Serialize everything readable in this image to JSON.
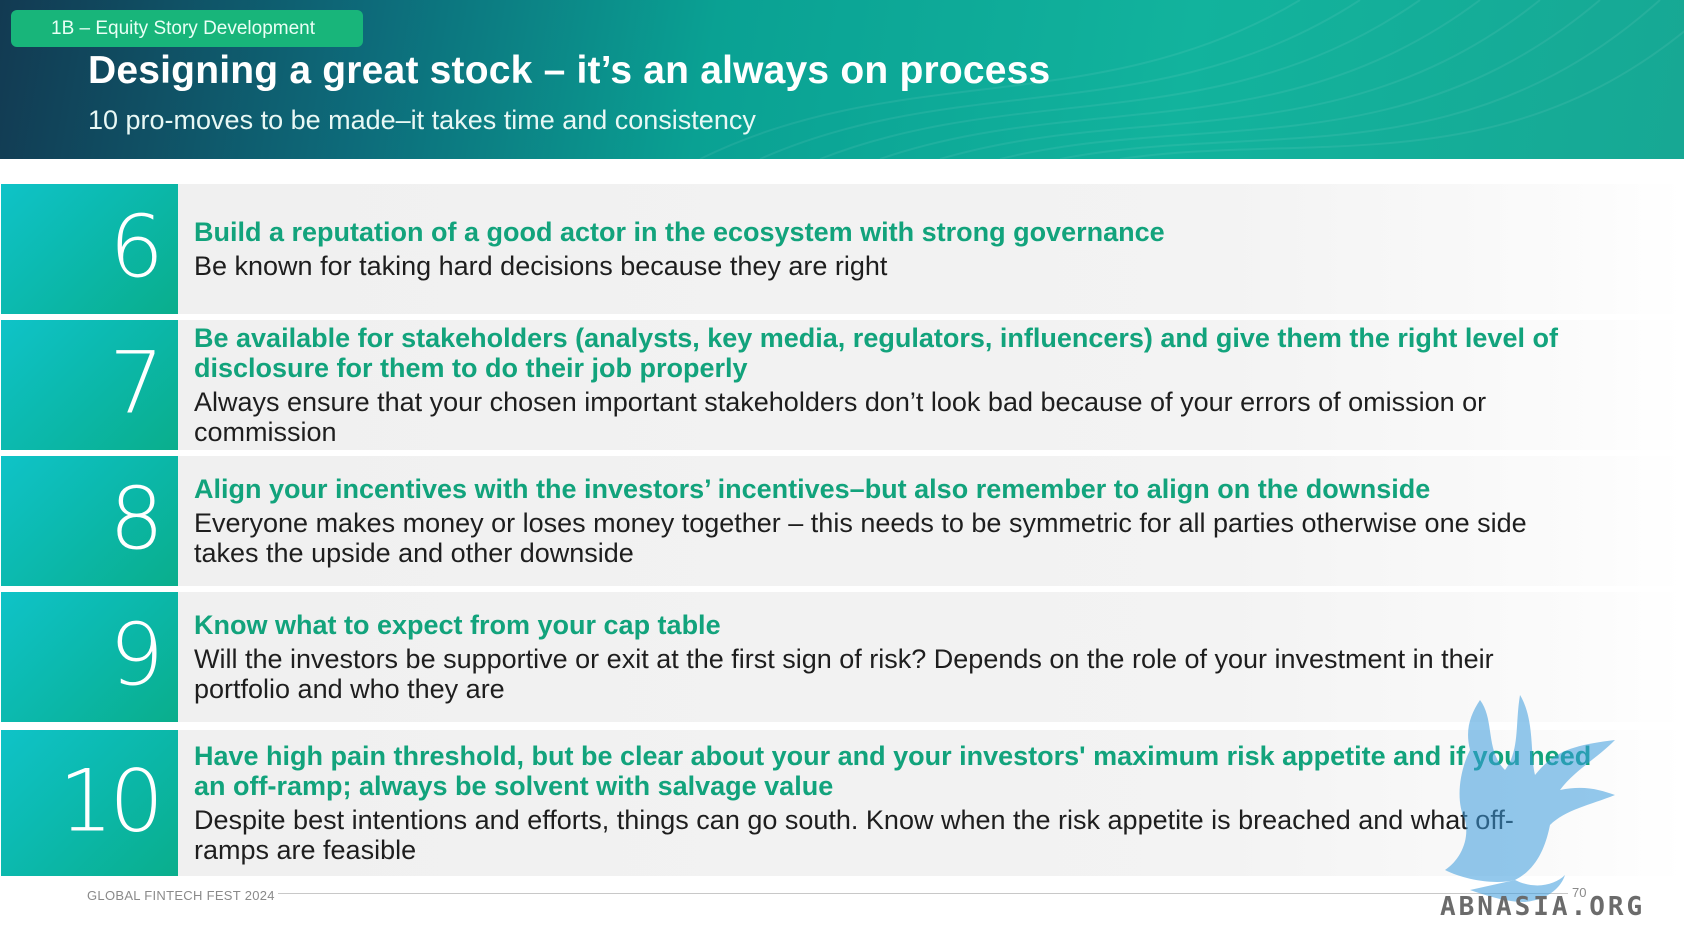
{
  "header": {
    "tag": "1B – Equity Story Development",
    "title": "Designing a great stock – it’s an always on process",
    "subtitle": "10 pro-moves to be made–it takes time and consistency"
  },
  "items": [
    {
      "number": "6",
      "heading": "Build a reputation of a good actor in the ecosystem with strong governance",
      "description": "Be known for taking hard decisions because they are right"
    },
    {
      "number": "7",
      "heading": "Be available for stakeholders (analysts, key media, regulators, influencers) and give them the right level of disclosure for them to do their job properly",
      "description": "Always ensure that your chosen important stakeholders don’t look bad because of your errors of omission or commission"
    },
    {
      "number": "8",
      "heading": "Align your incentives with the investors’ incentives–but also remember to align on the downside",
      "description": "Everyone makes money or loses money together – this needs to be symmetric for all parties otherwise one side takes the upside and other downside"
    },
    {
      "number": "9",
      "heading": "Know what to expect from your cap table",
      "description": "Will the investors be supportive or exit at the first sign of risk? Depends on the role of your investment in their portfolio and who they are"
    },
    {
      "number": "10",
      "heading": "Have high pain threshold, but be clear about your and your investors' maximum risk appetite and if you need an off-ramp; always be solvent with salvage value",
      "description": "Despite best intentions and efforts, things can go south. Know when the risk appetite is breached and what off-ramps are feasible"
    }
  ],
  "footer": {
    "event": "GLOBAL FINTECH FEST 2024",
    "page_number": "70"
  },
  "watermark": {
    "text": "ABNASIA.ORG"
  },
  "colors": {
    "accent_green": "#12a37c",
    "number_tile": "#0bb7a8",
    "tag_green": "#18b57a"
  }
}
